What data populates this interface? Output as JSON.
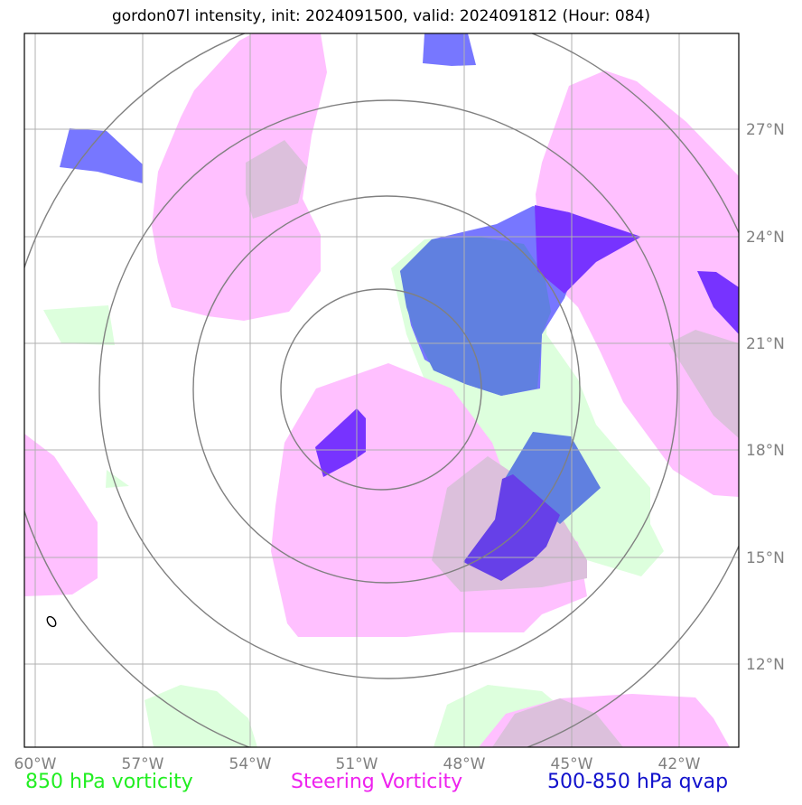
{
  "title": "gordon07l intensity, init: 2024091500, valid: 2024091812 (Hour: 084)",
  "longitude_labels": [
    "60°W",
    "57°W",
    "54°W",
    "51°W",
    "48°W",
    "45°W",
    "42°W"
  ],
  "latitude_labels": [
    "27°N",
    "24°N",
    "21°N",
    "18°N",
    "15°N",
    "12°N"
  ],
  "legend": {
    "green": "850 hPa vorticity",
    "magenta": "Steering Vorticity",
    "blue": "500-850 hPa qvap"
  },
  "colors": {
    "vorticity_850": "#ddffdd",
    "steering_vorticity": "#ffc0ff",
    "qvap": "#7777ff",
    "qvap_dark": "#7733ff",
    "grid": "#b0b0b0",
    "range_rings": "#808080"
  }
}
